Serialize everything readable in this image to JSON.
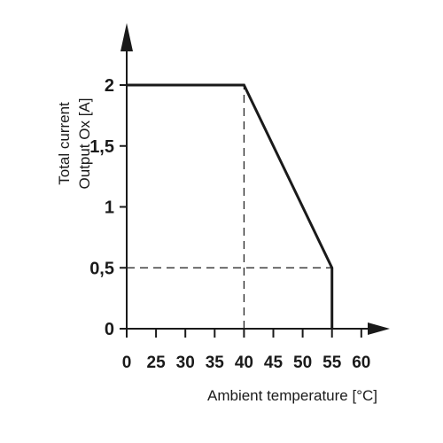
{
  "chart_data": {
    "type": "line",
    "xlabel": "Ambient temperature [°C]",
    "ylabel_lines": [
      "Total current",
      "Output Ox [A]"
    ],
    "x_ticks": [
      0,
      25,
      30,
      35,
      40,
      45,
      50,
      55,
      60
    ],
    "y_ticks": [
      "0",
      "0,5",
      "1",
      "1,5",
      "2"
    ],
    "y_tick_values": [
      0,
      0.5,
      1,
      1.5,
      2
    ],
    "ylim": [
      0,
      2
    ],
    "series": [
      {
        "points": [
          {
            "x": 0,
            "y": 2
          },
          {
            "x": 40,
            "y": 2
          },
          {
            "x": 55,
            "y": 0.5
          },
          {
            "x": 55,
            "y": 0
          }
        ]
      }
    ],
    "reference_lines": [
      {
        "type": "vertical",
        "x": 40,
        "y_from": 0,
        "y_to": 2
      },
      {
        "type": "horizontal",
        "y": 0.5,
        "x_from": 0,
        "x_to": 55
      }
    ],
    "grid": false,
    "colors": {
      "line": "#1a1a1a",
      "axis": "#1a1a1a"
    }
  }
}
